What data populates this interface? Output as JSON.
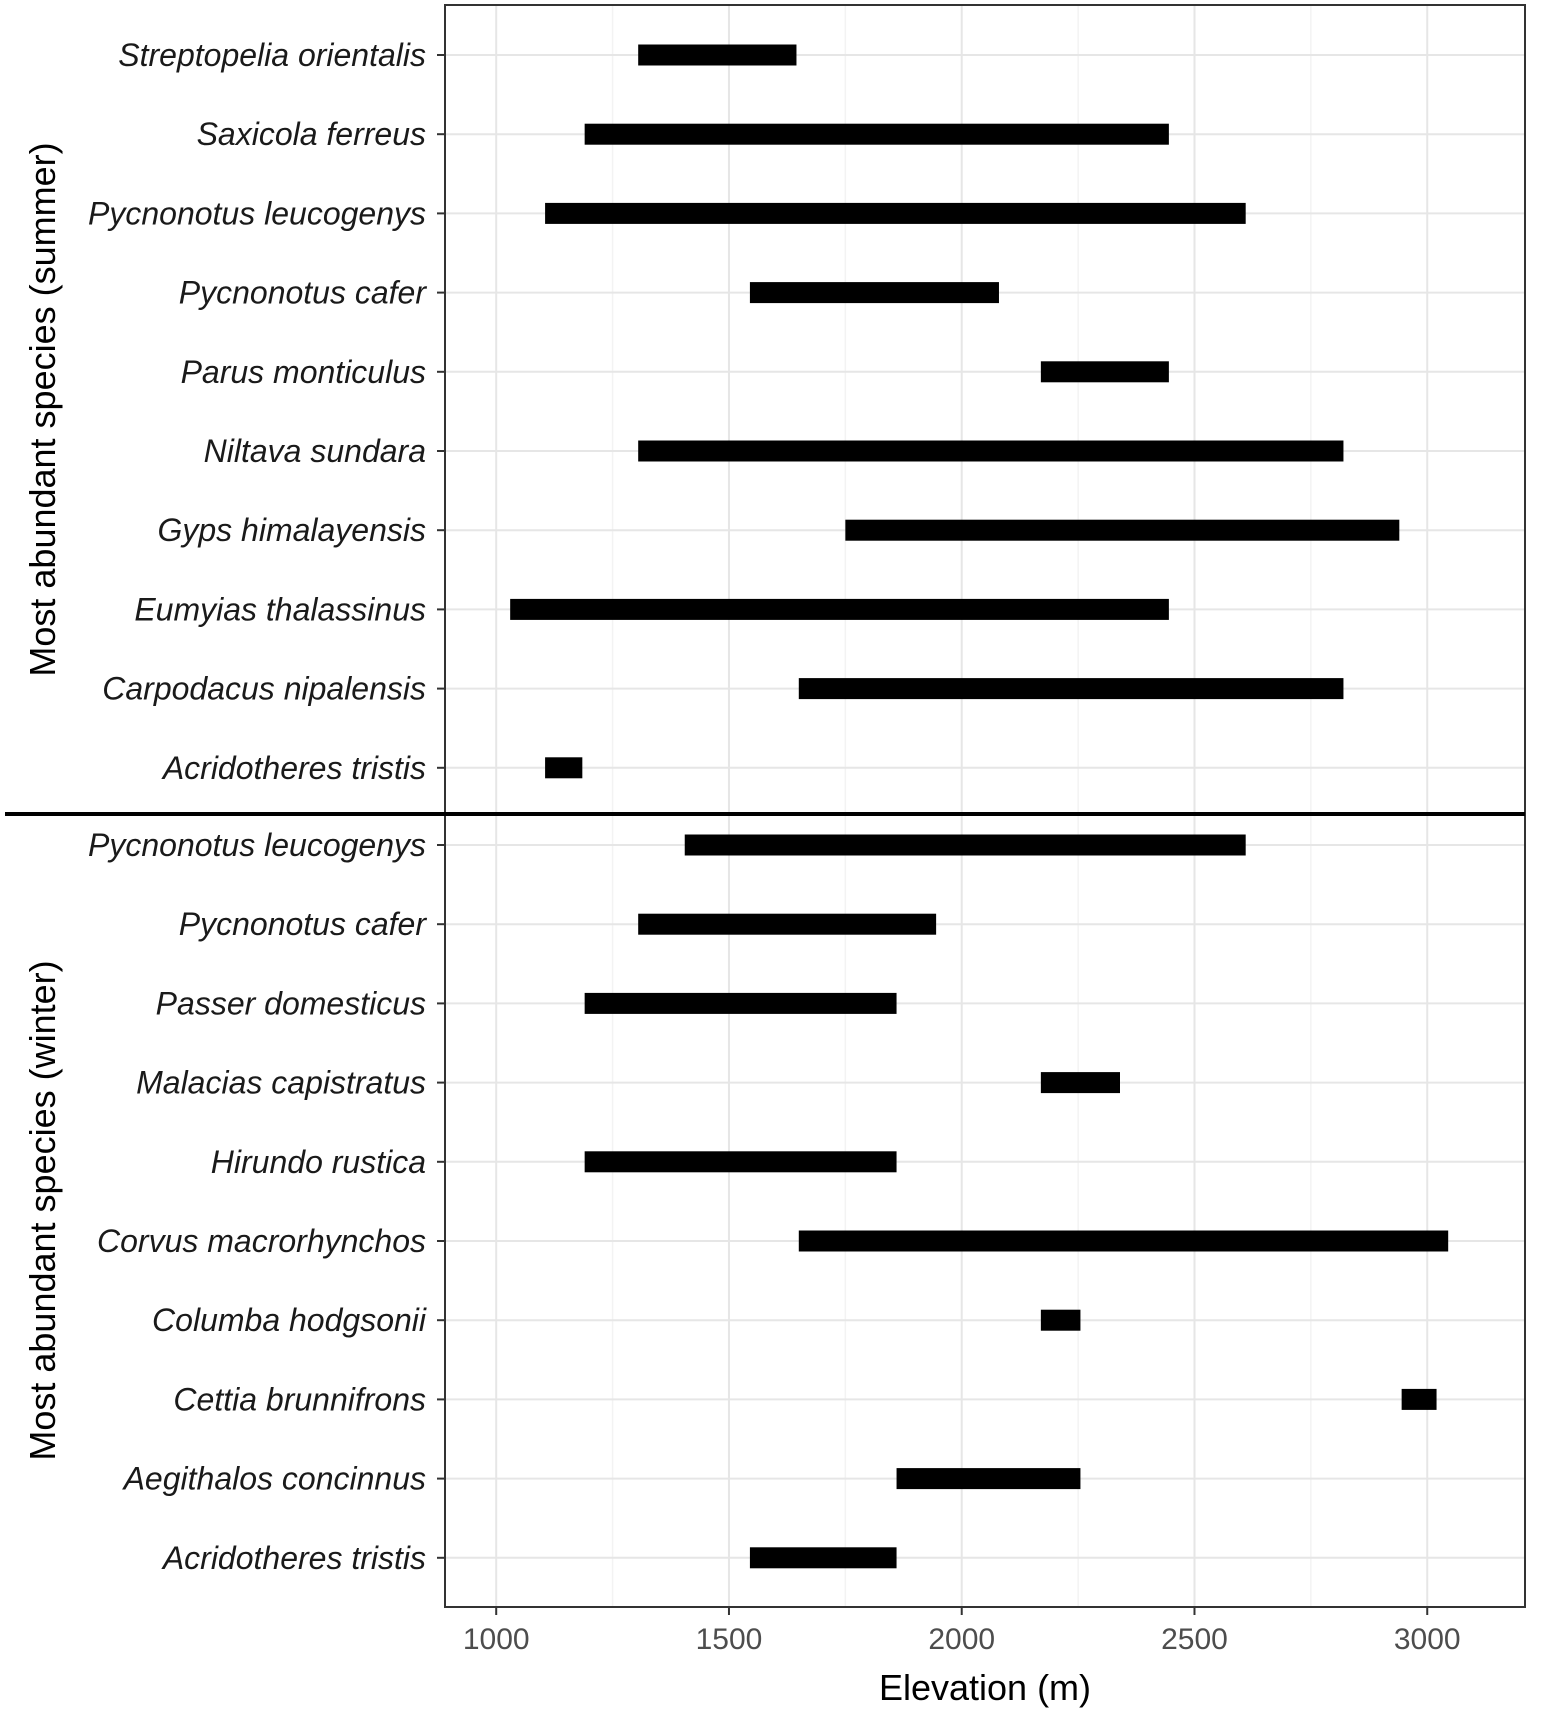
{
  "chart_data": {
    "type": "bar",
    "orientation": "horizontal-range",
    "xlabel": "Elevation (m)",
    "xlim": [
      890,
      3210
    ],
    "xticks": [
      1000,
      1500,
      2000,
      2500,
      3000
    ],
    "grid": true,
    "bar_color": "#000000",
    "panels": [
      {
        "ylabel": "Most abundant species (summer)",
        "categories": [
          "Streptopelia orientalis",
          "Saxicola ferreus",
          "Pycnonotus leucogenys",
          "Pycnonotus cafer",
          "Parus monticulus",
          "Niltava sundara",
          "Gyps himalayensis",
          "Eumyias thalassinus",
          "Carpodacus nipalensis",
          "Acridotheres tristis"
        ],
        "ranges": [
          [
            1305,
            1645
          ],
          [
            1190,
            2445
          ],
          [
            1105,
            2610
          ],
          [
            1545,
            2080
          ],
          [
            2170,
            2445
          ],
          [
            1305,
            2820
          ],
          [
            1750,
            2940
          ],
          [
            1030,
            2445
          ],
          [
            1650,
            2820
          ],
          [
            1105,
            1185
          ]
        ]
      },
      {
        "ylabel": "Most abundant species (winter)",
        "categories": [
          "Pycnonotus leucogenys",
          "Pycnonotus cafer",
          "Passer domesticus",
          "Malacias capistratus",
          "Hirundo rustica",
          "Corvus macrorhynchos",
          "Columba hodgsonii",
          "Cettia brunnifrons",
          "Aegithalos concinnus",
          "Acridotheres tristis"
        ],
        "ranges": [
          [
            1405,
            2610
          ],
          [
            1305,
            1945
          ],
          [
            1190,
            1860
          ],
          [
            2170,
            2340
          ],
          [
            1190,
            1860
          ],
          [
            1650,
            3045
          ],
          [
            2170,
            2255
          ],
          [
            2945,
            3020
          ],
          [
            1860,
            2255
          ],
          [
            1545,
            1860
          ]
        ]
      }
    ]
  }
}
